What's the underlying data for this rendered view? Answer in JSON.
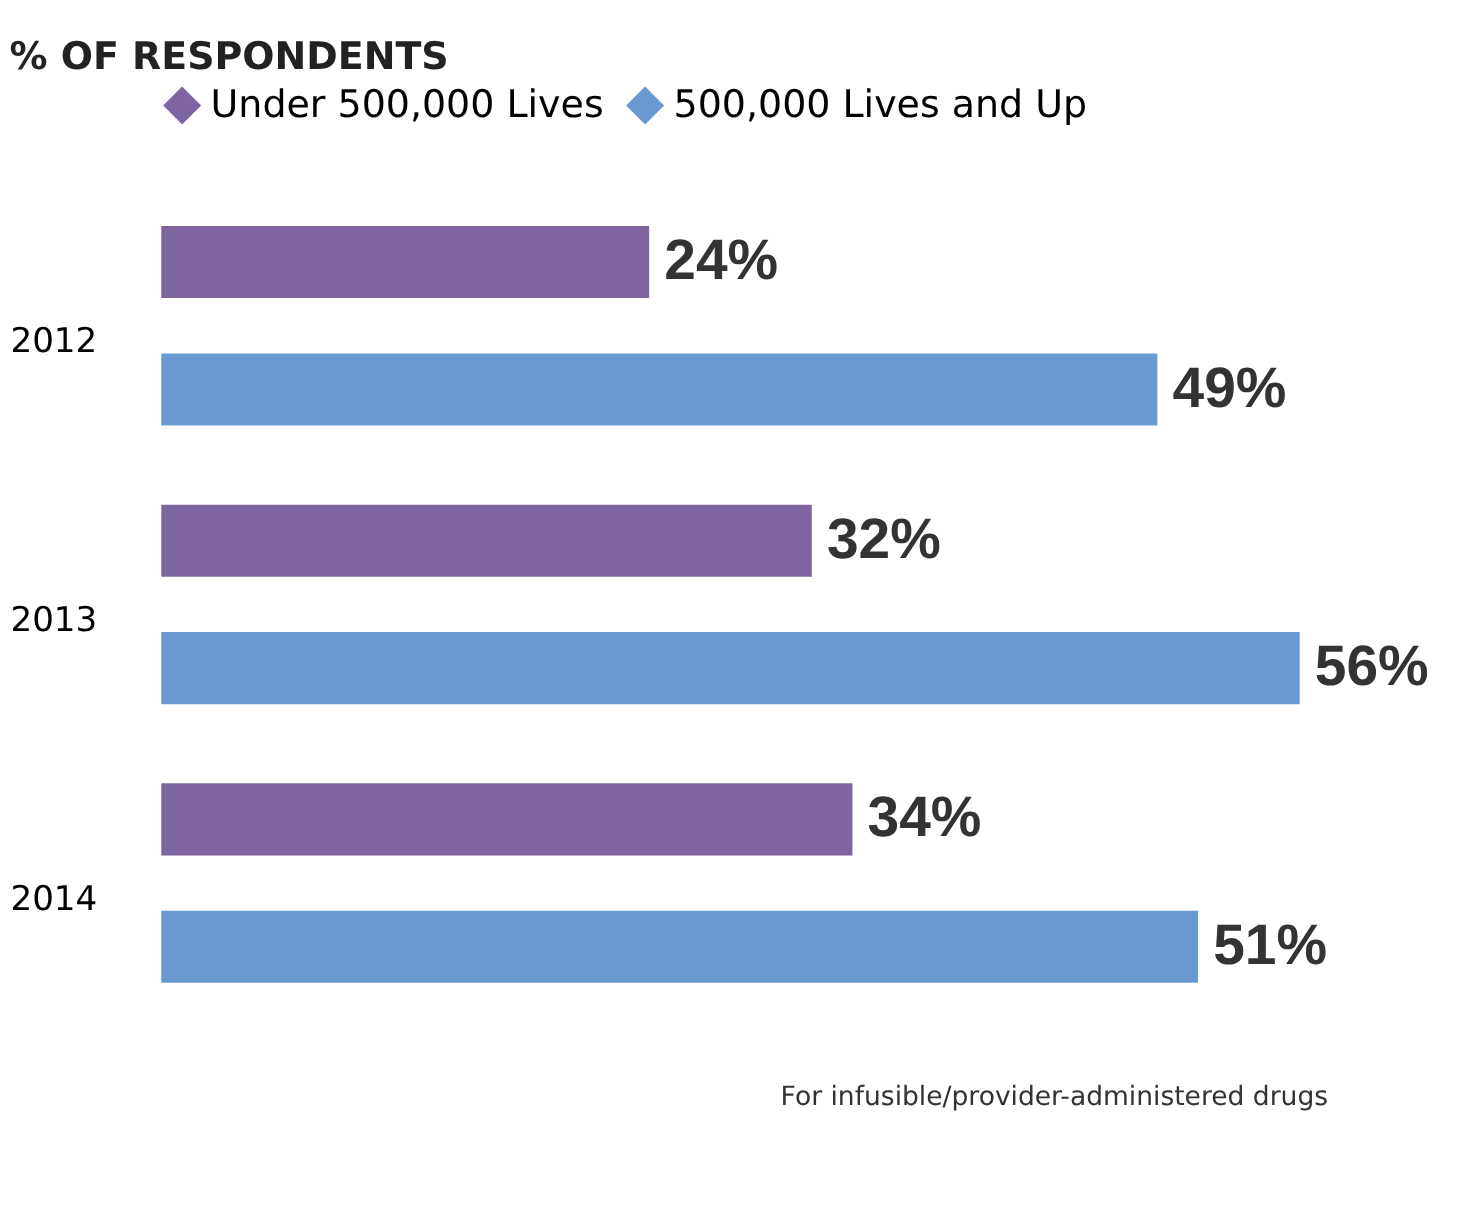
{
  "chart_data": {
    "type": "bar",
    "orientation": "horizontal",
    "title": "% OF RESPONDENTS",
    "categories": [
      "2012",
      "2013",
      "2014"
    ],
    "series": [
      {
        "name": "Under 500,000 Lives",
        "color": "#7e64a0",
        "values": [
          24,
          32,
          34
        ],
        "value_labels": [
          "24%",
          "32%",
          "34%"
        ]
      },
      {
        "name": "500,000 Lives and Up",
        "color": "#6a98d0",
        "values": [
          49,
          56,
          51
        ],
        "value_labels": [
          "49%",
          "56%",
          "51%"
        ]
      }
    ],
    "legend": "top",
    "tick_labels": "y",
    "grid": false,
    "annotations": [
      "For infusible/provider-administered drugs"
    ]
  }
}
